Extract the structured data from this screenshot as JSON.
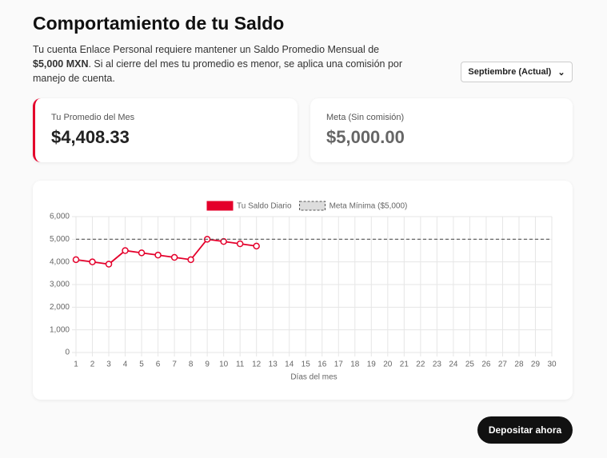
{
  "header": {
    "title": "Comportamiento de tu Saldo",
    "description": [
      "Tu cuenta Enlace Personal requiere mantener un Saldo Promedio Mensual de ",
      "$5,000 MXN",
      ". Si al cierre del mes tu promedio es menor, se aplica una comisión por manejo de cuenta."
    ],
    "month_select": "Septiembre (Actual)"
  },
  "cards": [
    {
      "label": "Tu Promedio del Mes",
      "value": "$4,408.33"
    },
    {
      "label": "Meta (Sin comisión)",
      "value": "$5,000.00"
    }
  ],
  "chart_data": {
    "type": "line",
    "x_label": "Días del mes",
    "categories": [
      1,
      2,
      3,
      4,
      5,
      6,
      7,
      8,
      9,
      10,
      11,
      12,
      13,
      14,
      15,
      16,
      17,
      18,
      19,
      20,
      21,
      22,
      23,
      24,
      25,
      26,
      27,
      28,
      29,
      30
    ],
    "series": [
      {
        "name": "Tu Saldo Diario",
        "color": "#e4002b",
        "dashed": false,
        "markers": true,
        "values": [
          4100,
          4000,
          3900,
          4500,
          4400,
          4300,
          4200,
          4100,
          5000,
          4900,
          4800,
          4700,
          null,
          null,
          null,
          null,
          null,
          null,
          null,
          null,
          null,
          null,
          null,
          null,
          null,
          null,
          null,
          null,
          null,
          null
        ]
      },
      {
        "name": "Meta Mínima ($5,000)",
        "color": "#555555",
        "dashed": true,
        "markers": false,
        "values": [
          5000,
          5000,
          5000,
          5000,
          5000,
          5000,
          5000,
          5000,
          5000,
          5000,
          5000,
          5000,
          5000,
          5000,
          5000,
          5000,
          5000,
          5000,
          5000,
          5000,
          5000,
          5000,
          5000,
          5000,
          5000,
          5000,
          5000,
          5000,
          5000,
          5000
        ]
      }
    ],
    "ylim": [
      0,
      6000
    ],
    "yticks": [
      0,
      {
        "value": 1000,
        "label": "1,000"
      },
      {
        "value": 2000,
        "label": "2,000"
      },
      {
        "value": 3000,
        "label": "3,000"
      },
      {
        "value": 4000,
        "label": "4,000"
      },
      {
        "value": 5000,
        "label": "5,000"
      },
      {
        "value": 6000,
        "label": "6,000"
      }
    ],
    "grid": true,
    "legend": "top"
  },
  "button": "Depositar ahora"
}
